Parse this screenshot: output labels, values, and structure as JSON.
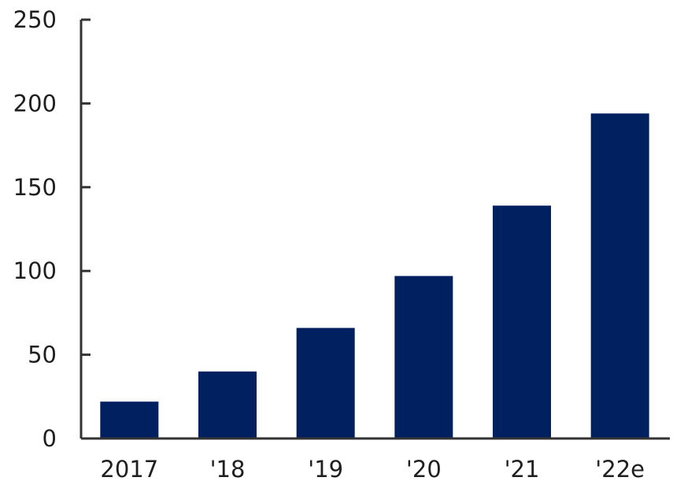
{
  "chart_data": {
    "type": "bar",
    "categories": [
      "2017",
      "'18",
      "'19",
      "'20",
      "'21",
      "'22e"
    ],
    "values": [
      22,
      40,
      66,
      97,
      139,
      194
    ],
    "title": "",
    "xlabel": "",
    "ylabel": "",
    "ylim": [
      0,
      250
    ],
    "yticks": [
      "0",
      "50",
      "100",
      "150",
      "200",
      "250"
    ],
    "grid": false,
    "legend": "none",
    "bar_color": "#002060",
    "axis_color": "#333333"
  }
}
